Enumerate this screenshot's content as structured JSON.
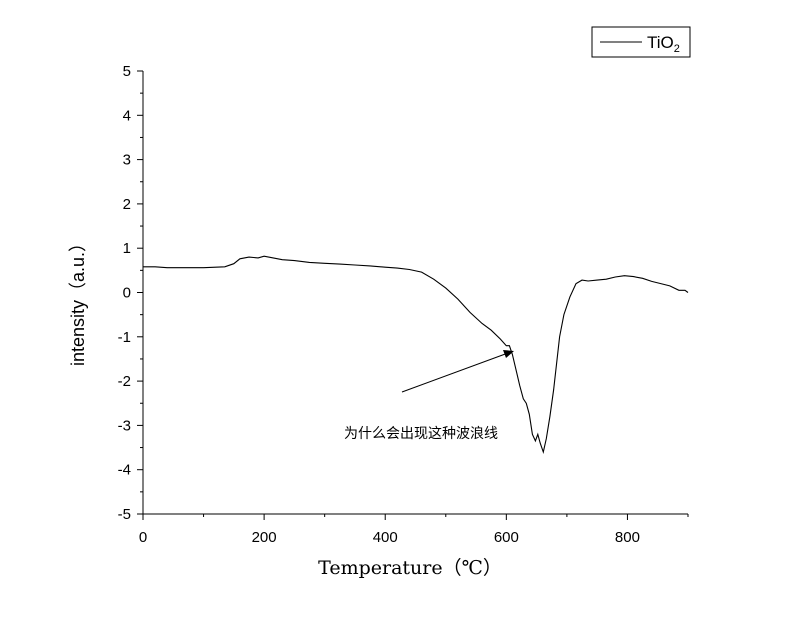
{
  "chart_data": {
    "type": "line",
    "xlabel": "Temperature（℃）",
    "ylabel": "intensity（a.u.）",
    "xlim": [
      0,
      900
    ],
    "ylim": [
      -5,
      5
    ],
    "x_ticks": [
      "0",
      "200",
      "400",
      "600",
      "800"
    ],
    "y_ticks": [
      "5",
      "4",
      "3",
      "2",
      "1",
      "0",
      "-1",
      "-2",
      "-3",
      "-4",
      "-5"
    ],
    "grid": false,
    "legend_position": "top-right",
    "series": [
      {
        "name_main": "TiO",
        "name_sub": "2",
        "color": "#000000",
        "points": [
          [
            0,
            0.58
          ],
          [
            20,
            0.58
          ],
          [
            40,
            0.56
          ],
          [
            60,
            0.56
          ],
          [
            80,
            0.56
          ],
          [
            100,
            0.56
          ],
          [
            120,
            0.57
          ],
          [
            135,
            0.58
          ],
          [
            150,
            0.65
          ],
          [
            160,
            0.76
          ],
          [
            175,
            0.8
          ],
          [
            190,
            0.78
          ],
          [
            200,
            0.82
          ],
          [
            215,
            0.78
          ],
          [
            230,
            0.74
          ],
          [
            250,
            0.72
          ],
          [
            275,
            0.68
          ],
          [
            300,
            0.66
          ],
          [
            325,
            0.64
          ],
          [
            350,
            0.62
          ],
          [
            375,
            0.6
          ],
          [
            400,
            0.57
          ],
          [
            420,
            0.55
          ],
          [
            440,
            0.52
          ],
          [
            460,
            0.46
          ],
          [
            480,
            0.3
          ],
          [
            500,
            0.1
          ],
          [
            520,
            -0.15
          ],
          [
            540,
            -0.45
          ],
          [
            560,
            -0.7
          ],
          [
            575,
            -0.85
          ],
          [
            590,
            -1.05
          ],
          [
            600,
            -1.2
          ],
          [
            605,
            -1.2
          ],
          [
            610,
            -1.4
          ],
          [
            617,
            -1.8
          ],
          [
            622,
            -2.1
          ],
          [
            628,
            -2.4
          ],
          [
            633,
            -2.5
          ],
          [
            638,
            -2.75
          ],
          [
            643,
            -3.2
          ],
          [
            648,
            -3.35
          ],
          [
            652,
            -3.2
          ],
          [
            656,
            -3.4
          ],
          [
            661,
            -3.6
          ],
          [
            666,
            -3.3
          ],
          [
            672,
            -2.8
          ],
          [
            678,
            -2.2
          ],
          [
            683,
            -1.6
          ],
          [
            688,
            -1.0
          ],
          [
            695,
            -0.5
          ],
          [
            705,
            -0.1
          ],
          [
            715,
            0.2
          ],
          [
            725,
            0.28
          ],
          [
            735,
            0.26
          ],
          [
            750,
            0.28
          ],
          [
            765,
            0.3
          ],
          [
            780,
            0.35
          ],
          [
            795,
            0.38
          ],
          [
            810,
            0.36
          ],
          [
            825,
            0.32
          ],
          [
            840,
            0.25
          ],
          [
            855,
            0.2
          ],
          [
            870,
            0.15
          ],
          [
            885,
            0.05
          ],
          [
            895,
            0.05
          ],
          [
            900,
            0.0
          ]
        ]
      }
    ],
    "annotation": {
      "text": "为什么会出现这种波浪线",
      "points_to": [
        608,
        -1.3
      ]
    }
  }
}
